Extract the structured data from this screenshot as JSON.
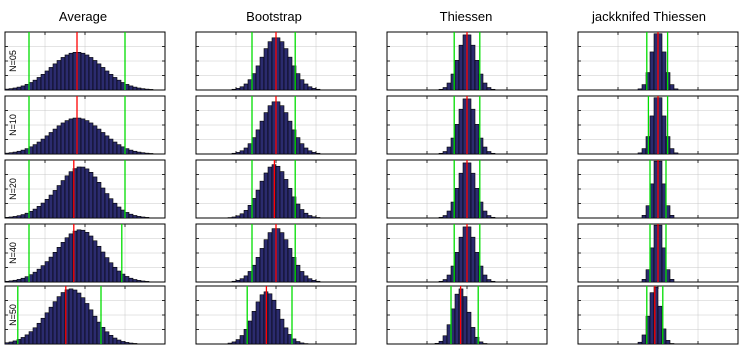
{
  "chart_data": {
    "type": "histogram-grid",
    "column_titles": [
      "Average",
      "Bootstrap",
      "Thiessen",
      "jackknifed Thiessen"
    ],
    "row_labels": [
      "N=05",
      "N=10",
      "N=20",
      "N=40",
      "N=50"
    ],
    "grid": true,
    "colors": {
      "bars": "#2b2b6e",
      "bar_edge": "#000000",
      "mean_line": "#ff0000",
      "interval_lines": "#00dd00",
      "axes": "#000000",
      "grid": "#c8c8c8"
    },
    "panels": [
      [
        {
          "mean": 0.45,
          "sd": 0.16,
          "skew": 0.0,
          "lo": 0.15,
          "hi": 0.75,
          "peak": 0.65
        },
        {
          "mean": 0.45,
          "sd": 0.16,
          "skew": 0.0,
          "lo": 0.15,
          "hi": 0.75,
          "peak": 0.62
        },
        {
          "mean": 0.43,
          "sd": 0.15,
          "skew": 0.35,
          "lo": 0.15,
          "hi": 0.75,
          "peak": 0.88
        },
        {
          "mean": 0.43,
          "sd": 0.15,
          "skew": 0.3,
          "lo": 0.15,
          "hi": 0.73,
          "peak": 0.9
        },
        {
          "mean": 0.38,
          "sd": 0.14,
          "skew": 0.25,
          "lo": 0.08,
          "hi": 0.6,
          "peak": 0.95
        }
      ],
      [
        {
          "mean": 0.5,
          "sd": 0.09,
          "skew": 0.0,
          "lo": 0.35,
          "hi": 0.62,
          "peak": 0.9
        },
        {
          "mean": 0.5,
          "sd": 0.09,
          "skew": 0.0,
          "lo": 0.35,
          "hi": 0.62,
          "peak": 0.9
        },
        {
          "mean": 0.49,
          "sd": 0.09,
          "skew": 0.0,
          "lo": 0.35,
          "hi": 0.62,
          "peak": 0.92
        },
        {
          "mean": 0.5,
          "sd": 0.09,
          "skew": 0.0,
          "lo": 0.35,
          "hi": 0.62,
          "peak": 0.92
        },
        {
          "mean": 0.44,
          "sd": 0.08,
          "skew": 0.0,
          "lo": 0.32,
          "hi": 0.6,
          "peak": 0.9
        }
      ],
      [
        {
          "mean": 0.5,
          "sd": 0.055,
          "skew": 0.0,
          "lo": 0.42,
          "hi": 0.58,
          "peak": 0.95
        },
        {
          "mean": 0.5,
          "sd": 0.055,
          "skew": 0.0,
          "lo": 0.42,
          "hi": 0.58,
          "peak": 0.95
        },
        {
          "mean": 0.5,
          "sd": 0.055,
          "skew": 0.0,
          "lo": 0.42,
          "hi": 0.58,
          "peak": 0.95
        },
        {
          "mean": 0.5,
          "sd": 0.055,
          "skew": 0.0,
          "lo": 0.42,
          "hi": 0.58,
          "peak": 0.95
        },
        {
          "mean": 0.46,
          "sd": 0.05,
          "skew": 0.0,
          "lo": 0.4,
          "hi": 0.57,
          "peak": 0.95
        }
      ],
      [
        {
          "mean": 0.5,
          "sd": 0.04,
          "skew": 0.0,
          "lo": 0.43,
          "hi": 0.56,
          "peak": 0.97
        },
        {
          "mean": 0.5,
          "sd": 0.04,
          "skew": 0.0,
          "lo": 0.44,
          "hi": 0.56,
          "peak": 0.97
        },
        {
          "mean": 0.5,
          "sd": 0.035,
          "skew": 0.0,
          "lo": 0.45,
          "hi": 0.55,
          "peak": 0.98
        },
        {
          "mean": 0.5,
          "sd": 0.035,
          "skew": 0.0,
          "lo": 0.45,
          "hi": 0.55,
          "peak": 0.98
        },
        {
          "mean": 0.48,
          "sd": 0.035,
          "skew": 0.0,
          "lo": 0.43,
          "hi": 0.53,
          "peak": 0.98
        }
      ]
    ]
  }
}
